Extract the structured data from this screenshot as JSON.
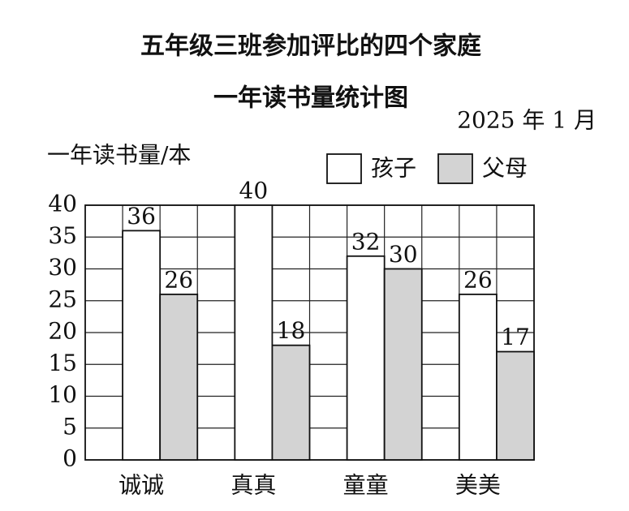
{
  "chart_data": {
    "type": "bar",
    "title": "五年级三班参加评比的四个家庭",
    "subtitle": "一年读书量统计图",
    "date": "2025 年 1 月",
    "y_label": "一年读书量/本",
    "categories": [
      "诚诚",
      "真真",
      "童童",
      "美美"
    ],
    "series": [
      {
        "name": "孩子",
        "color": "#ffffff",
        "values": [
          36,
          40,
          32,
          26
        ]
      },
      {
        "name": "父母",
        "color": "#d3d3d3",
        "values": [
          26,
          18,
          30,
          17
        ]
      }
    ],
    "ylim": [
      0,
      40
    ],
    "yticks": [
      0,
      5,
      10,
      15,
      20,
      25,
      30,
      35,
      40
    ],
    "grid": true
  }
}
